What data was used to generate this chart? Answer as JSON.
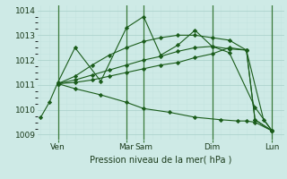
{
  "background_color": "#ceeae6",
  "grid_color_major": "#aed4ce",
  "grid_color_minor": "#c4e4e0",
  "line_color": "#1a5c1a",
  "marker_color": "#1a5c1a",
  "xlabel": "Pression niveau de la mer( hPa )",
  "ylim": [
    1008.8,
    1014.2
  ],
  "yticks": [
    1009,
    1010,
    1011,
    1012,
    1013,
    1014
  ],
  "xlim": [
    -0.2,
    14.2
  ],
  "xtick_labels": [
    "Ven",
    "Mar",
    "Sam",
    "Dim",
    "Lun"
  ],
  "xtick_positions": [
    1,
    5,
    6,
    10,
    13.5
  ],
  "vline_positions": [
    1.0,
    5.0,
    6.0,
    10.0,
    13.5
  ],
  "series": [
    {
      "x": [
        0.0,
        0.5,
        1.0,
        2.0,
        3.5,
        5.0,
        6.0,
        7.0,
        8.0,
        9.0,
        10.0,
        11.0,
        12.5,
        13.5
      ],
      "y": [
        1009.7,
        1010.3,
        1011.1,
        1012.5,
        1011.15,
        1013.3,
        1013.75,
        1012.2,
        1012.6,
        1013.2,
        1012.55,
        1012.3,
        1010.1,
        1009.15
      ]
    },
    {
      "x": [
        1.0,
        2.0,
        3.0,
        4.0,
        5.0,
        6.0,
        7.0,
        8.0,
        9.0,
        10.0,
        11.0,
        12.0,
        13.0,
        13.5
      ],
      "y": [
        1011.05,
        1011.35,
        1011.8,
        1012.2,
        1012.5,
        1012.75,
        1012.9,
        1013.0,
        1013.0,
        1012.9,
        1012.8,
        1012.4,
        1009.6,
        1009.15
      ]
    },
    {
      "x": [
        1.0,
        2.0,
        3.0,
        4.0,
        5.0,
        6.0,
        7.0,
        8.0,
        9.0,
        10.0,
        11.0,
        12.0,
        12.5,
        13.5
      ],
      "y": [
        1011.05,
        1011.2,
        1011.4,
        1011.6,
        1011.8,
        1012.0,
        1012.15,
        1012.35,
        1012.5,
        1012.55,
        1012.45,
        1012.4,
        1009.6,
        1009.15
      ]
    },
    {
      "x": [
        1.0,
        2.0,
        3.0,
        4.0,
        5.0,
        6.0,
        7.0,
        8.0,
        9.0,
        10.0,
        11.0,
        12.0,
        12.5,
        13.5
      ],
      "y": [
        1011.05,
        1011.1,
        1011.2,
        1011.35,
        1011.5,
        1011.65,
        1011.8,
        1011.9,
        1012.1,
        1012.25,
        1012.5,
        1012.4,
        1009.6,
        1009.15
      ]
    },
    {
      "x": [
        1.0,
        2.0,
        3.5,
        5.0,
        6.0,
        7.5,
        9.0,
        10.5,
        11.5,
        12.0,
        12.5,
        13.5
      ],
      "y": [
        1011.05,
        1010.85,
        1010.6,
        1010.3,
        1010.05,
        1009.9,
        1009.7,
        1009.6,
        1009.55,
        1009.55,
        1009.5,
        1009.15
      ]
    }
  ],
  "figsize": [
    3.2,
    2.0
  ],
  "dpi": 100
}
